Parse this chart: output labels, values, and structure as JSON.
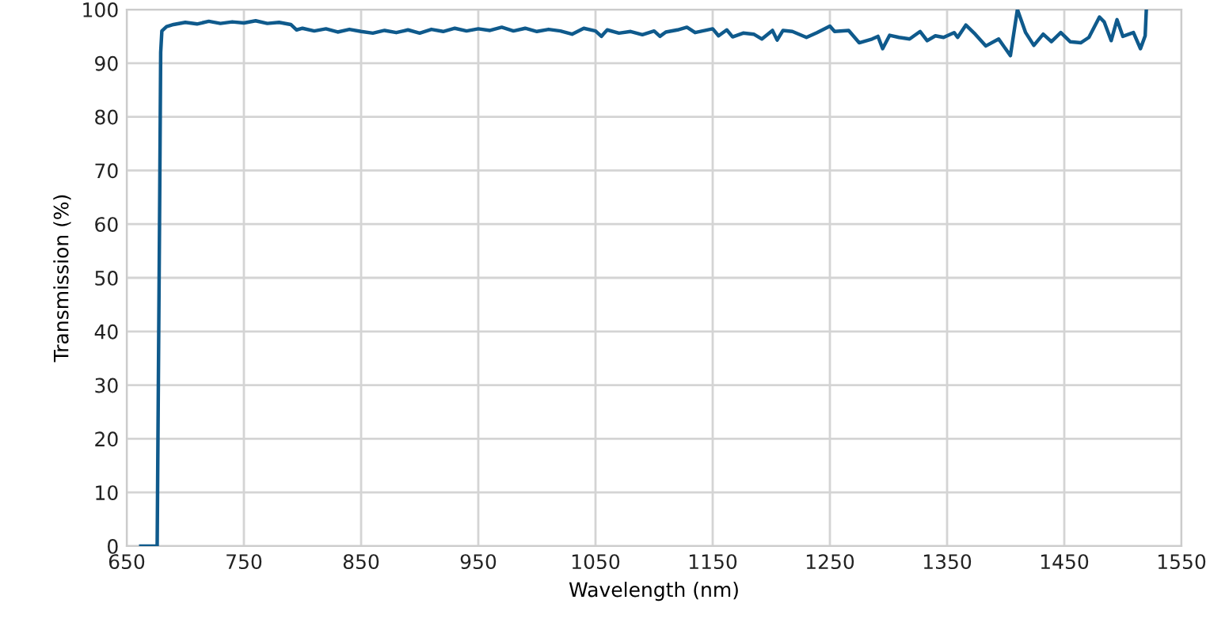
{
  "chart_data": {
    "type": "line",
    "xlabel": "Wavelength (nm)",
    "ylabel": "Transmission (%)",
    "x": [
      662,
      676,
      678,
      679,
      680,
      684,
      690,
      700,
      710,
      720,
      730,
      740,
      750,
      760,
      770,
      780,
      790,
      795,
      800,
      810,
      820,
      830,
      840,
      850,
      860,
      870,
      880,
      890,
      900,
      910,
      920,
      930,
      940,
      950,
      960,
      970,
      980,
      990,
      1000,
      1010,
      1020,
      1030,
      1040,
      1050,
      1055,
      1060,
      1070,
      1080,
      1090,
      1100,
      1105,
      1110,
      1120,
      1128,
      1135,
      1150,
      1155,
      1162,
      1167,
      1176,
      1185,
      1192,
      1201,
      1205,
      1210,
      1218,
      1230,
      1239,
      1250,
      1254,
      1266,
      1275,
      1286,
      1291,
      1295,
      1301,
      1309,
      1318,
      1327,
      1333,
      1340,
      1347,
      1356,
      1359,
      1366,
      1374,
      1383,
      1394,
      1404,
      1410,
      1417,
      1424,
      1432,
      1439,
      1447,
      1455,
      1464,
      1471,
      1480,
      1484,
      1490,
      1495,
      1500,
      1509,
      1515,
      1519,
      1520
    ],
    "series": [
      {
        "color": "#0f5a8c",
        "values": [
          0,
          0,
          60,
          92,
          96,
          96.8,
          97.2,
          97.6,
          97.3,
          97.8,
          97.4,
          97.7,
          97.5,
          97.9,
          97.4,
          97.6,
          97.2,
          96.2,
          96.5,
          96.0,
          96.4,
          95.8,
          96.3,
          95.9,
          95.6,
          96.1,
          95.7,
          96.2,
          95.6,
          96.3,
          95.9,
          96.5,
          96.0,
          96.4,
          96.1,
          96.7,
          96.0,
          96.5,
          95.9,
          96.3,
          96.0,
          95.4,
          96.5,
          96.0,
          95.0,
          96.2,
          95.6,
          95.9,
          95.3,
          96.0,
          95.0,
          95.8,
          96.2,
          96.7,
          95.7,
          96.4,
          95.1,
          96.2,
          94.9,
          95.6,
          95.4,
          94.5,
          96.1,
          94.3,
          96.1,
          95.9,
          94.8,
          95.7,
          96.9,
          95.9,
          96.1,
          93.8,
          94.5,
          95.0,
          92.7,
          95.2,
          94.8,
          94.5,
          95.9,
          94.2,
          95.1,
          94.8,
          95.7,
          94.8,
          97.1,
          95.4,
          93.2,
          94.5,
          91.4,
          100,
          95.7,
          93.3,
          95.4,
          94.0,
          95.7,
          94.0,
          93.8,
          94.8,
          98.6,
          97.7,
          94.2,
          98.1,
          95.0,
          95.7,
          92.7,
          95.1,
          100
        ]
      }
    ],
    "xlim": [
      650,
      1550
    ],
    "ylim": [
      0,
      100
    ],
    "xticks": [
      650,
      750,
      850,
      950,
      1050,
      1150,
      1250,
      1350,
      1450,
      1550
    ],
    "yticks": [
      0,
      10,
      20,
      30,
      40,
      50,
      60,
      70,
      80,
      90,
      100
    ],
    "grid": true,
    "legend": false,
    "marker": "none",
    "line_style": "solid"
  }
}
